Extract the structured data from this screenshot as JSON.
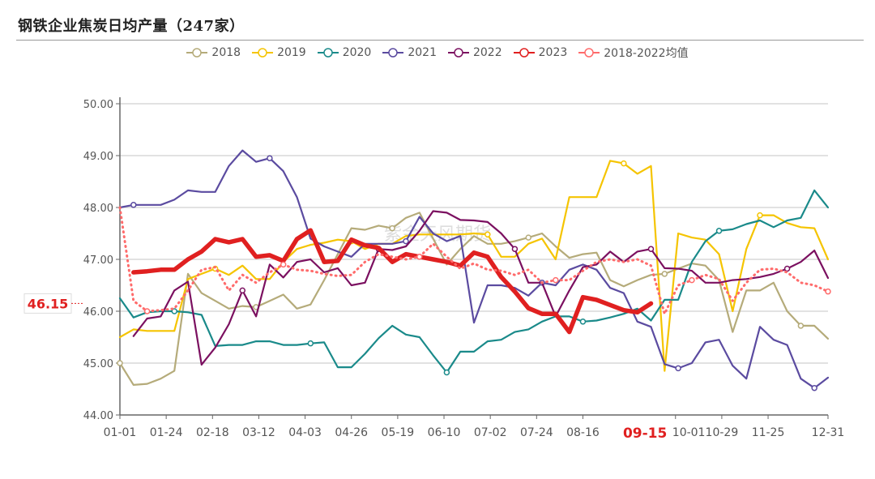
{
  "title": "钢铁企业焦炭日均产量（247家）",
  "chart_data": {
    "type": "line",
    "title": "钢铁企业焦炭日均产量（247家）",
    "xlabel": "",
    "ylabel": "",
    "x_unit": "week index (0 = 01-01, 52 = 12-31)",
    "ylim": [
      44,
      50
    ],
    "yticks": [
      "44.00",
      "45.00",
      "46.00",
      "47.00",
      "48.00",
      "49.00",
      "50.00"
    ],
    "xticks": [
      {
        "label": "01-01",
        "week": 0
      },
      {
        "label": "01-24",
        "week": 3.4
      },
      {
        "label": "02-18",
        "week": 6.8
      },
      {
        "label": "03-12",
        "week": 10.2
      },
      {
        "label": "04-03",
        "week": 13.6
      },
      {
        "label": "04-26",
        "week": 17
      },
      {
        "label": "05-19",
        "week": 20.4
      },
      {
        "label": "06-10",
        "week": 23.8
      },
      {
        "label": "07-02",
        "week": 27.2
      },
      {
        "label": "07-24",
        "week": 30.6
      },
      {
        "label": "08-16",
        "week": 34
      },
      {
        "label": "10-01",
        "week": 40.8
      },
      {
        "label": "10-29",
        "week": 44.2
      },
      {
        "label": "11-25",
        "week": 47.6
      },
      {
        "label": "12-31",
        "week": 52
      }
    ],
    "highlight": {
      "x_label": "09-15",
      "x_week": 38.8,
      "y_label": "46.15",
      "y_value": 46.15,
      "color": "#e02020"
    },
    "grid": true,
    "legend_position": "top",
    "watermark": "紫金天风期货",
    "series": [
      {
        "name": "2018",
        "color": "#b5ab7a",
        "dashed": false,
        "width": 2.2,
        "start": 0,
        "values": [
          45.0,
          44.58,
          44.6,
          44.7,
          44.85,
          46.72,
          46.35,
          46.2,
          46.05,
          46.1,
          46.08,
          46.2,
          46.32,
          46.05,
          46.13,
          46.6,
          47.1,
          47.6,
          47.57,
          47.65,
          47.6,
          47.8,
          47.9,
          47.4,
          46.9,
          47.2,
          47.45,
          47.3,
          47.3,
          47.35,
          47.42,
          47.5,
          47.25,
          47.03,
          47.1,
          47.13,
          46.6,
          46.48,
          46.6,
          46.7,
          46.72,
          46.82,
          46.92,
          46.88,
          46.6,
          45.6,
          46.4,
          46.4,
          46.55,
          46.0,
          45.72,
          45.72,
          45.47
        ]
      },
      {
        "name": "2019",
        "color": "#f5c400",
        "dashed": false,
        "width": 2.2,
        "start": 0,
        "values": [
          45.5,
          45.65,
          45.62,
          45.62,
          45.62,
          46.62,
          46.72,
          46.82,
          46.7,
          46.88,
          46.62,
          46.62,
          46.95,
          47.2,
          47.28,
          47.32,
          47.38,
          47.35,
          47.2,
          47.3,
          47.3,
          47.45,
          47.48,
          47.48,
          47.48,
          47.48,
          47.5,
          47.48,
          47.05,
          47.05,
          47.3,
          47.4,
          47.0,
          48.2,
          48.2,
          48.2,
          48.9,
          48.85,
          48.65,
          48.8,
          44.85,
          47.5,
          47.42,
          47.38,
          47.1,
          46.0,
          47.2,
          47.85,
          47.85,
          47.7,
          47.62,
          47.6,
          47.0
        ]
      },
      {
        "name": "2020",
        "color": "#1a8a8a",
        "dashed": false,
        "width": 2.2,
        "start": 0,
        "values": [
          46.25,
          45.88,
          45.98,
          46.0,
          46.0,
          45.98,
          45.93,
          45.33,
          45.35,
          45.35,
          45.42,
          45.42,
          45.35,
          45.35,
          45.38,
          45.4,
          44.92,
          44.92,
          45.18,
          45.48,
          45.72,
          45.55,
          45.5,
          45.15,
          44.82,
          45.22,
          45.22,
          45.42,
          45.45,
          45.6,
          45.65,
          45.8,
          45.9,
          45.9,
          45.8,
          45.82,
          45.88,
          45.95,
          46.05,
          45.82,
          46.22,
          46.22,
          46.95,
          47.35,
          47.55,
          47.58,
          47.68,
          47.75,
          47.62,
          47.75,
          47.8,
          48.33,
          48.0
        ]
      },
      {
        "name": "2021",
        "color": "#5b4ba0",
        "dashed": false,
        "width": 2.2,
        "start": 0,
        "values": [
          48.0,
          48.05,
          48.05,
          48.05,
          48.15,
          48.33,
          48.3,
          48.3,
          48.8,
          49.1,
          48.88,
          48.95,
          48.7,
          48.2,
          47.4,
          47.25,
          47.15,
          47.05,
          47.3,
          47.3,
          47.3,
          47.35,
          47.82,
          47.5,
          47.35,
          47.45,
          45.78,
          46.5,
          46.5,
          46.45,
          46.3,
          46.55,
          46.5,
          46.8,
          46.9,
          46.8,
          46.45,
          46.35,
          45.8,
          45.7,
          44.98,
          44.9,
          45.0,
          45.4,
          45.45,
          44.95,
          44.7,
          45.7,
          45.45,
          45.35,
          44.7,
          44.52,
          44.72
        ]
      },
      {
        "name": "2022",
        "color": "#7b1060",
        "dashed": false,
        "width": 2.2,
        "start": 1,
        "values": [
          45.52,
          45.86,
          45.9,
          46.4,
          46.57,
          44.97,
          45.3,
          45.75,
          46.4,
          45.9,
          46.9,
          46.65,
          46.95,
          47.0,
          46.75,
          46.83,
          46.5,
          46.55,
          47.2,
          47.18,
          47.25,
          47.55,
          47.93,
          47.9,
          47.76,
          47.75,
          47.72,
          47.5,
          47.2,
          46.55,
          46.55,
          45.9,
          46.4,
          46.85,
          46.9,
          47.15,
          46.95,
          47.15,
          47.2,
          46.83,
          46.82,
          46.78,
          46.55,
          46.55,
          46.6,
          46.62,
          46.66,
          46.72,
          46.82,
          46.95,
          47.17,
          46.64
        ]
      },
      {
        "name": "2023",
        "color": "#e02020",
        "dashed": false,
        "width": 5.5,
        "start": 1,
        "values": [
          46.75,
          46.77,
          46.8,
          46.8,
          47.0,
          47.15,
          47.39,
          47.33,
          47.39,
          47.05,
          47.08,
          46.97,
          47.39,
          47.56,
          46.95,
          46.97,
          47.38,
          47.27,
          47.22,
          46.95,
          47.1,
          47.05,
          47.0,
          46.95,
          46.88,
          47.13,
          47.05,
          46.66,
          46.38,
          46.06,
          45.95,
          45.95,
          45.6,
          46.27,
          46.22,
          46.12,
          46.02,
          45.98,
          46.15
        ]
      },
      {
        "name": "2018-2022均值",
        "color": "#ff6b6b",
        "dashed": true,
        "width": 2.5,
        "start": 0,
        "values": [
          48.0,
          46.2,
          46.0,
          46.02,
          46.05,
          46.4,
          46.8,
          46.85,
          46.4,
          46.7,
          46.55,
          46.75,
          46.9,
          46.8,
          46.78,
          46.72,
          46.68,
          46.7,
          46.95,
          47.1,
          47.05,
          47.0,
          47.05,
          47.3,
          47.05,
          46.82,
          46.92,
          46.8,
          46.78,
          46.7,
          46.8,
          46.55,
          46.6,
          46.6,
          46.78,
          46.95,
          47.0,
          46.95,
          47.0,
          46.88,
          45.95,
          46.5,
          46.6,
          46.7,
          46.62,
          46.2,
          46.55,
          46.8,
          46.82,
          46.75,
          46.55,
          46.5,
          46.38
        ]
      }
    ]
  }
}
